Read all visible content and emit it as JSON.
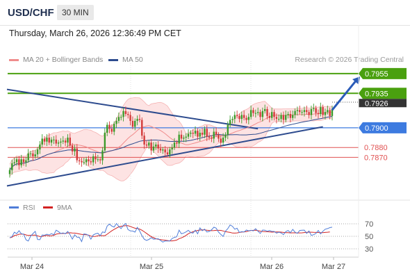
{
  "header": {
    "pair": "USD/CHF",
    "timeframe": "30 MIN"
  },
  "timestamp": "Thursday, March 26, 2026 12:36:49 PM CET",
  "legend": {
    "bollinger": "MA 20 + Bollinger Bands",
    "ma50": "MA 50",
    "copyright": "Research © 2026 Trading Central",
    "rsi": "RSI",
    "rsi_ma": "9MA"
  },
  "colors": {
    "bollinger": "#f08c8c",
    "ma50": "#2d4b8e",
    "resistance": "#4aa00f",
    "pivot": "#3d7be0",
    "support": "#e05050",
    "last_price": "#333333",
    "candle_up": "#3a9b2a",
    "candle_down": "#d33a3a",
    "rsi": "#4f7dd8",
    "rsi_ma": "#d22222"
  },
  "chart_data": [
    {
      "type": "candlestick",
      "x_labels": [
        "Mar 24",
        "Mar 25",
        "Mar 26",
        "Mar 27"
      ],
      "ylim": [
        0.7835,
        0.7962
      ],
      "last_price": 0.7926,
      "levels": [
        {
          "label": "0.7955",
          "value": 0.7955,
          "kind": "resistance"
        },
        {
          "label": "0.7935",
          "value": 0.7935,
          "kind": "resistance"
        },
        {
          "label": "0.7900",
          "value": 0.79,
          "kind": "pivot"
        },
        {
          "label": "0.7880",
          "value": 0.788,
          "kind": "support"
        },
        {
          "label": "0.7870",
          "value": 0.787,
          "kind": "support"
        }
      ],
      "trendlines": [
        {
          "name": "upper",
          "from": [
            0,
            0.7939
          ],
          "to": [
            107,
            0.7899
          ]
        },
        {
          "name": "lower",
          "from": [
            0,
            0.7841
          ],
          "to": [
            135,
            0.7901
          ]
        }
      ],
      "arrow": {
        "from": [
          139,
          0.7918
        ],
        "to": [
          151,
          0.7952
        ]
      },
      "closes": [
        0.7857,
        0.7864,
        0.7865,
        0.7868,
        0.7862,
        0.7868,
        0.7865,
        0.7867,
        0.7874,
        0.7874,
        0.7871,
        0.7873,
        0.7878,
        0.7883,
        0.7889,
        0.7886,
        0.789,
        0.7885,
        0.7888,
        0.7888,
        0.7884,
        0.7885,
        0.7886,
        0.7887,
        0.7885,
        0.789,
        0.7882,
        0.7876,
        0.7879,
        0.7867,
        0.7866,
        0.7865,
        0.7865,
        0.7868,
        0.7866,
        0.7865,
        0.7871,
        0.7868,
        0.7868,
        0.7867,
        0.7877,
        0.7895,
        0.7903,
        0.7899,
        0.7896,
        0.7904,
        0.7907,
        0.7911,
        0.7911,
        0.7917,
        0.7914,
        0.7913,
        0.7907,
        0.7901,
        0.7907,
        0.7909,
        0.7908,
        0.7892,
        0.7883,
        0.7882,
        0.7885,
        0.7877,
        0.7881,
        0.7883,
        0.7879,
        0.7877,
        0.7878,
        0.7875,
        0.7873,
        0.7878,
        0.788,
        0.7885,
        0.7884,
        0.7893,
        0.7889,
        0.789,
        0.7891,
        0.7894,
        0.7895,
        0.7894,
        0.7897,
        0.7891,
        0.7895,
        0.7893,
        0.7899,
        0.7891,
        0.789,
        0.7889,
        0.7896,
        0.7893,
        0.7889,
        0.7885,
        0.789,
        0.7893,
        0.7903,
        0.7908,
        0.7909,
        0.7913,
        0.7912,
        0.7909,
        0.7913,
        0.791,
        0.7908,
        0.7911,
        0.7918,
        0.7915,
        0.7915,
        0.7916,
        0.7911,
        0.7917,
        0.7919,
        0.7912,
        0.791,
        0.7916,
        0.7911,
        0.7909,
        0.7909,
        0.7913,
        0.7908,
        0.7913,
        0.7914,
        0.791,
        0.7913,
        0.7917,
        0.7918,
        0.7916,
        0.7916,
        0.7918,
        0.7916,
        0.7913,
        0.7919,
        0.792,
        0.7915,
        0.7914,
        0.7921,
        0.7913,
        0.7916,
        0.7918,
        0.7912,
        0.7919
      ]
    },
    {
      "type": "line",
      "title": "RSI",
      "y_ticks": [
        70,
        50,
        30
      ],
      "ylim": [
        20,
        80
      ],
      "series": [
        {
          "name": "RSI",
          "values": [
            47.7,
            49.5,
            56.5,
            54.2,
            58.9,
            54.0,
            53.4,
            44.4,
            42.5,
            50.1,
            54.3,
            57.9,
            44.9,
            44.5,
            52.1,
            51.8,
            53.3,
            52.1,
            54.2,
            52.5,
            59.8,
            57.6,
            54.5,
            55.4,
            54.0,
            57.8,
            52.6,
            45.4,
            52.6,
            48.6,
            48.3,
            41.6,
            53.8,
            53.2,
            51.5,
            45.4,
            52.2,
            54.0,
            54.9,
            51.0,
            57.0,
            56.0,
            66.3,
            69.5,
            66.3,
            64.8,
            70.5,
            65.8,
            62.3,
            67.6,
            70.4,
            60.8,
            58.6,
            58.5,
            56.7,
            64.2,
            58.6,
            51.0,
            45.3,
            43.5,
            45.0,
            47.8,
            45.3,
            45.8,
            46.1,
            43.3,
            40.8,
            42.5,
            42.4,
            42.6,
            46.4,
            48.2,
            49.2,
            59.9,
            54.0,
            55.2,
            57.0,
            59.5,
            56.1,
            55.1,
            59.9,
            54.0,
            63.5,
            58.9,
            61.4,
            56.9,
            57.8,
            60.3,
            64.5,
            63.0,
            56.8,
            53.0,
            49.7,
            58.2,
            62.2,
            68.1,
            66.0,
            61.3,
            62.9,
            56.1,
            57.5,
            56.8,
            60.0,
            58.8,
            59.7,
            58.7,
            62.1,
            58.1,
            54.5,
            60.0,
            59.8,
            58.1,
            59.2,
            57.8,
            57.8,
            55.1,
            56.6,
            55.5,
            52.7,
            57.5,
            59.3,
            55.8,
            61.0,
            56.5,
            54.7,
            59.3,
            59.8,
            59.9,
            54.7,
            58.4,
            51.4,
            52.6,
            54.6,
            59.3,
            53.9,
            58.0,
            61.3,
            62.3,
            63.9,
            64.5
          ]
        },
        {
          "name": "9MA",
          "values": [
            47.7,
            48.6,
            51.2,
            51.9,
            53.3,
            53.4,
            53.4,
            52.2,
            51.3,
            51.7,
            51.8,
            51.9,
            50.8,
            49.6,
            49.8,
            50.9,
            51.4,
            50.6,
            50.9,
            51.6,
            53.5,
            54.2,
            54.4,
            54.5,
            54.5,
            55.4,
            55.7,
            55.2,
            55.1,
            54.5,
            53.8,
            53.0,
            52.8,
            52.5,
            51.9,
            50.3,
            49.8,
            49.9,
            50.8,
            51.1,
            51.0,
            51.0,
            53.3,
            56.1,
            58.8,
            61.0,
            63.1,
            65.0,
            66.1,
            66.6,
            67.0,
            66.9,
            65.8,
            64.2,
            62.9,
            62.6,
            61.6,
            59.7,
            57.2,
            54.7,
            51.9,
            49.6,
            47.8,
            46.1,
            45.2,
            44.7,
            44.1,
            43.8,
            43.2,
            42.7,
            42.7,
            43.2,
            44.0,
            46.2,
            47.5,
            49.2,
            51.4,
            54.1,
            55.9,
            57.2,
            58.3,
            59.3,
            60.0,
            60.2,
            60.3,
            59.8,
            59.3,
            59.0,
            59.2,
            59.5,
            59.5,
            59.4,
            58.6,
            57.4,
            56.8,
            56.2,
            55.2,
            55.1,
            55.4,
            56.1,
            56.8,
            57.1,
            57.6,
            58.5,
            59.3,
            59.6,
            59.7,
            59.0,
            58.2,
            57.7,
            57.5,
            57.3,
            57.1,
            56.7,
            56.9,
            57.0,
            56.9,
            56.7,
            56.2,
            55.8,
            55.8,
            55.4,
            55.6,
            55.6,
            55.5,
            55.5,
            55.6,
            56.0,
            56.4,
            56.7,
            56.5,
            56.3,
            56.2,
            56.1,
            55.8,
            55.9,
            56.2,
            56.5,
            57.0
          ]
        }
      ]
    }
  ]
}
